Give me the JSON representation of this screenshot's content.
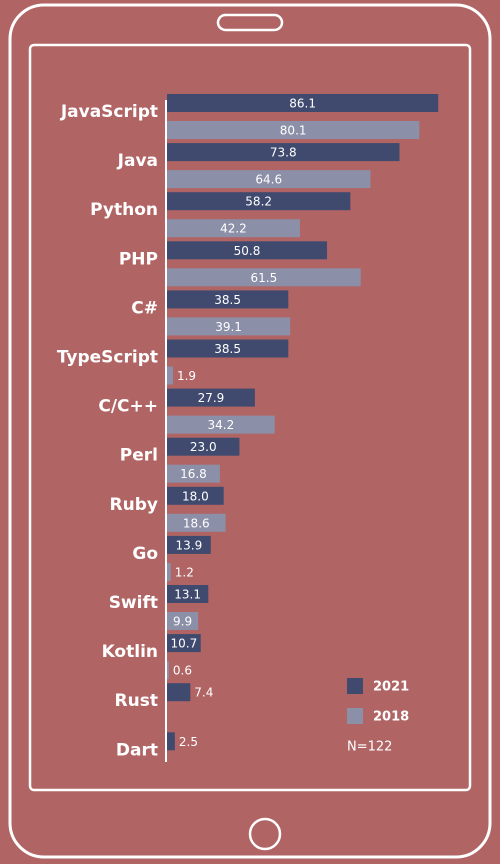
{
  "chart_data": {
    "type": "bar",
    "orientation": "horizontal",
    "categories": [
      "JavaScript",
      "Java",
      "Python",
      "PHP",
      "C#",
      "TypeScript",
      "C/C++",
      "Perl",
      "Ruby",
      "Go",
      "Swift",
      "Kotlin",
      "Rust",
      "Dart"
    ],
    "series": [
      {
        "name": "2021",
        "color": "#3f4a6e",
        "values": [
          86.1,
          73.8,
          58.2,
          50.8,
          38.5,
          38.5,
          27.9,
          23.0,
          18.0,
          13.9,
          13.1,
          10.7,
          7.4,
          2.5
        ],
        "value_labels": [
          "86.1",
          "73.8",
          "58.2",
          "50.8",
          "38.5",
          "38.5",
          "27.9",
          "23.0",
          "18.0",
          "13.9",
          "13.1",
          "10.7",
          "7.4",
          "2.5"
        ]
      },
      {
        "name": "2018",
        "color": "#8c8fa8",
        "values": [
          80.1,
          64.6,
          42.2,
          61.5,
          39.1,
          1.9,
          34.2,
          16.8,
          18.6,
          1.2,
          9.9,
          0.6,
          null,
          null
        ],
        "value_labels": [
          "80.1",
          "64.6",
          "42.2",
          "61.5",
          "39.1",
          "1.9",
          "34.2",
          "16.8",
          "18.6",
          "1.2",
          "9.9",
          "0.6",
          null,
          null
        ]
      }
    ],
    "note": "N=122"
  }
}
